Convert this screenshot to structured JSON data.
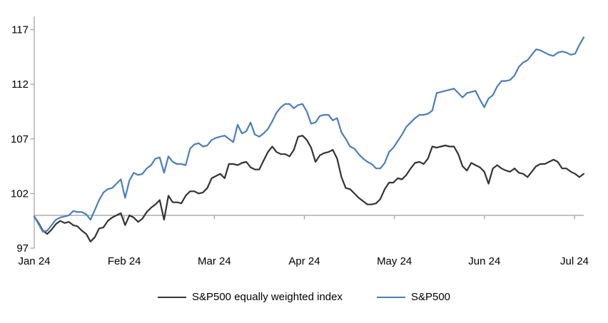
{
  "chart_data": {
    "type": "line",
    "title": "",
    "x_axis": {
      "tick_labels": [
        "Jan 24",
        "Feb 24",
        "Mar 24",
        "Apr 24",
        "May 24",
        "Jun 24",
        "Jul 24"
      ],
      "baseline_value": 100,
      "grid": false
    },
    "y_axis": {
      "ticks": [
        117,
        112,
        107,
        102,
        97
      ],
      "min": 97,
      "max": 118,
      "label": ""
    },
    "legend_position": "bottom",
    "axis_color": "#a6a6a6",
    "text_color": "#000000",
    "series": [
      {
        "name": "S&P500 equally weighted index",
        "color": "#333333",
        "values": [
          99.9,
          99.3,
          98.6,
          98.3,
          98.7,
          99.2,
          99.5,
          99.3,
          99.4,
          99.1,
          99.0,
          98.6,
          98.3,
          97.6,
          98.0,
          98.8,
          98.9,
          99.5,
          99.8,
          100.0,
          100.2,
          99.1,
          100.0,
          99.8,
          99.4,
          99.7,
          100.3,
          100.7,
          101.0,
          101.4,
          99.6,
          101.8,
          101.2,
          101.2,
          101.1,
          101.8,
          102.2,
          102.2,
          102.0,
          102.1,
          102.5,
          103.4,
          103.6,
          103.8,
          103.4,
          104.7,
          104.7,
          104.6,
          104.8,
          104.9,
          104.4,
          104.2,
          104.2,
          105.0,
          105.8,
          106.3,
          105.8,
          105.6,
          105.6,
          105.4,
          106.0,
          107.2,
          107.3,
          106.9,
          106.2,
          104.9,
          105.5,
          105.7,
          105.8,
          106.0,
          105.2,
          103.5,
          102.5,
          102.4,
          102.0,
          101.6,
          101.3,
          101.0,
          101.0,
          101.1,
          101.5,
          102.4,
          103.0,
          103.0,
          103.4,
          103.3,
          103.7,
          104.3,
          104.8,
          104.9,
          104.7,
          105.2,
          106.3,
          106.2,
          106.3,
          106.4,
          106.3,
          106.3,
          105.6,
          104.5,
          104.1,
          104.8,
          104.6,
          104.4,
          104.0,
          102.9,
          104.3,
          104.6,
          104.3,
          104.1,
          104.0,
          104.3,
          103.9,
          103.8,
          103.5,
          104.0,
          104.5,
          104.7,
          104.7,
          104.9,
          105.1,
          104.9,
          104.3,
          104.3,
          104.0,
          103.8,
          103.5,
          103.8
        ]
      },
      {
        "name": "S&P500",
        "color": "#4a7ebb",
        "values": [
          99.9,
          99.2,
          98.5,
          98.6,
          99.1,
          99.6,
          99.8,
          99.9,
          100.0,
          100.4,
          100.3,
          100.3,
          100.1,
          99.6,
          100.5,
          101.4,
          102.1,
          102.4,
          102.5,
          102.9,
          103.3,
          101.6,
          103.2,
          103.9,
          103.7,
          103.8,
          104.3,
          104.6,
          105.2,
          105.3,
          103.9,
          105.4,
          104.9,
          104.7,
          104.7,
          104.6,
          106.1,
          106.5,
          106.6,
          106.3,
          106.4,
          106.9,
          107.1,
          107.2,
          107.3,
          107.0,
          106.7,
          108.3,
          107.5,
          107.7,
          108.5,
          107.4,
          107.2,
          107.5,
          107.9,
          108.6,
          109.4,
          109.9,
          110.2,
          110.2,
          109.8,
          110.1,
          110.2,
          109.5,
          108.4,
          108.5,
          109.1,
          109.2,
          109.2,
          108.7,
          108.9,
          107.6,
          107.0,
          106.3,
          106.1,
          105.6,
          105.2,
          104.9,
          104.7,
          104.3,
          104.3,
          104.8,
          105.8,
          106.2,
          106.8,
          107.4,
          108.1,
          108.5,
          108.9,
          109.2,
          109.2,
          109.3,
          109.6,
          111.2,
          111.3,
          111.4,
          111.5,
          111.6,
          111.2,
          110.8,
          111.2,
          111.3,
          111.4,
          110.6,
          109.9,
          110.7,
          111.0,
          111.8,
          112.3,
          112.3,
          112.4,
          112.8,
          113.6,
          114.0,
          114.2,
          114.7,
          115.2,
          115.1,
          114.9,
          114.7,
          114.6,
          114.9,
          115.0,
          114.9,
          114.7,
          114.8,
          115.6,
          116.3
        ]
      }
    ]
  }
}
